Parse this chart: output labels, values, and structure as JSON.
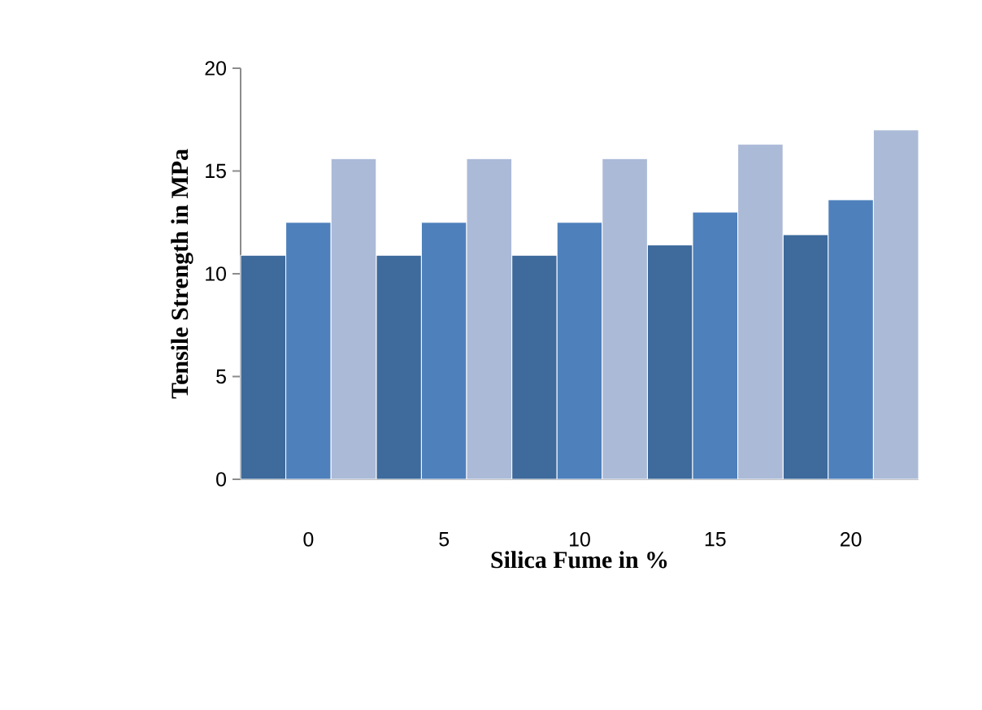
{
  "chart_data": {
    "type": "bar",
    "xlabel": "Silica Fume in %",
    "ylabel": "Tensile Strength in MPa",
    "categories": [
      "0",
      "5",
      "10",
      "15",
      "20"
    ],
    "series": [
      {
        "color": "#3e6a9c",
        "values": [
          10.9,
          10.9,
          10.9,
          11.4,
          11.9
        ]
      },
      {
        "color": "#4e80bc",
        "values": [
          12.5,
          12.5,
          12.5,
          13.0,
          13.6
        ]
      },
      {
        "color": "#abbad7",
        "values": [
          15.6,
          15.6,
          15.6,
          16.3,
          17.0
        ]
      }
    ],
    "ylim": [
      0,
      20
    ],
    "yticks": [
      0,
      5,
      10,
      15,
      20
    ],
    "grid": false
  }
}
